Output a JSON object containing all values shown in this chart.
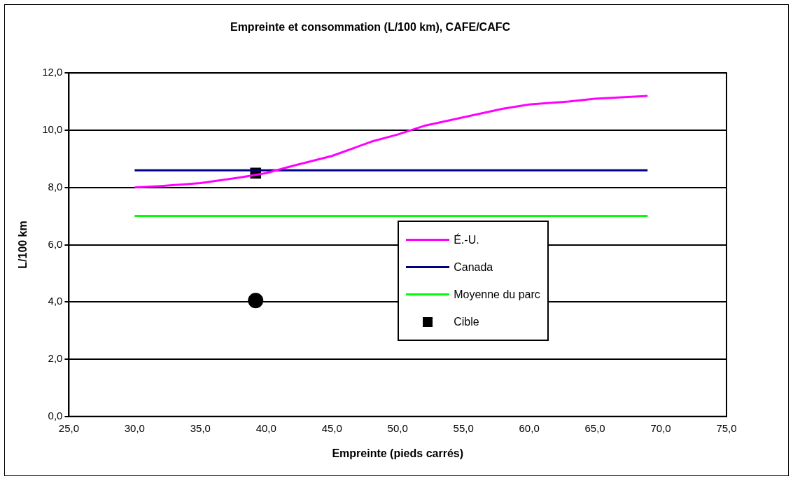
{
  "chart_data": {
    "type": "line",
    "title": "Empreinte et consommation (L/100 km), CAFE/CAFC",
    "xlabel": "Empreinte (pieds carrés)",
    "ylabel": "L/100 km",
    "xlim": [
      25,
      75
    ],
    "xticks": [
      {
        "value": 25,
        "label": "25,0"
      },
      {
        "value": 30,
        "label": "30,0"
      },
      {
        "value": 35,
        "label": "35,0"
      },
      {
        "value": 40,
        "label": "40,0"
      },
      {
        "value": 45,
        "label": "45,0"
      },
      {
        "value": 50,
        "label": "50,0"
      },
      {
        "value": 55,
        "label": "55,0"
      },
      {
        "value": 60,
        "label": "60,0"
      },
      {
        "value": 65,
        "label": "65,0"
      },
      {
        "value": 70,
        "label": "70,0"
      },
      {
        "value": 75,
        "label": "75,0"
      }
    ],
    "ylim": [
      0,
      12
    ],
    "yticks": [
      {
        "value": 0,
        "label": "0,0"
      },
      {
        "value": 2,
        "label": "2,0"
      },
      {
        "value": 4,
        "label": "4,0"
      },
      {
        "value": 6,
        "label": "6,0"
      },
      {
        "value": 8,
        "label": "8,0"
      },
      {
        "value": 10,
        "label": "10,0"
      },
      {
        "value": 12,
        "label": "12,0"
      }
    ],
    "grid": "y",
    "legend": "center",
    "series": [
      {
        "name": "É.-U.",
        "color": "#ff00ff",
        "marker": "none",
        "x": [
          30,
          32,
          35,
          38,
          40,
          42,
          45,
          48,
          50,
          52,
          55,
          58,
          60,
          63,
          65,
          67,
          69
        ],
        "values": [
          8.0,
          8.05,
          8.15,
          8.35,
          8.5,
          8.75,
          9.1,
          9.6,
          9.85,
          10.15,
          10.45,
          10.75,
          10.9,
          11.0,
          11.1,
          11.15,
          11.2
        ]
      },
      {
        "name": "Canada",
        "color": "#000080",
        "marker": "none",
        "x": [
          30,
          69
        ],
        "values": [
          8.6,
          8.6
        ]
      },
      {
        "name": "Moyenne du parc",
        "color": "#00ff00",
        "marker": "none",
        "x": [
          30,
          69
        ],
        "values": [
          7.0,
          7.0
        ]
      },
      {
        "name": "Cible",
        "type": "scatter",
        "color": "#000000",
        "marker": "square",
        "x": [
          39.2
        ],
        "values": [
          8.5
        ]
      },
      {
        "type": "scatter",
        "color": "#000000",
        "marker": "circle",
        "x": [
          39.2
        ],
        "values": [
          4.05
        ]
      }
    ]
  }
}
